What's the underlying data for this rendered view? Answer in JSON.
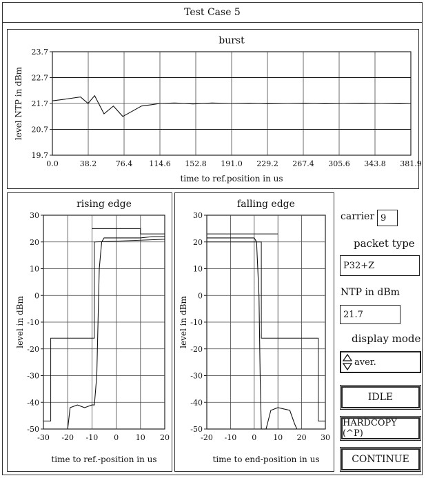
{
  "window": {
    "title": "Test Case 5"
  },
  "controls": {
    "carrier_label": "carrier",
    "carrier_value": "9",
    "packet_type_label": "packet type",
    "packet_type_value": "P32+Z",
    "ntp_label": "NTP in dBm",
    "ntp_value": "21.7",
    "display_mode_label": "display mode",
    "display_mode_value": "aver.",
    "idle_button": "IDLE",
    "hardcopy_button": "HARDCOPY (^P)",
    "continue_button": "CONTINUE",
    "spinner_icon": "up-down-arrows-icon"
  },
  "chart_data": [
    {
      "type": "line",
      "title": "burst",
      "xlabel": "time to ref.position in us",
      "ylabel": "level NTP in dBm",
      "x_ticks": [
        "0.0",
        "38.2",
        "76.4",
        "114.6",
        "152.8",
        "191.0",
        "229.2",
        "267.4",
        "305.6",
        "343.8",
        "381.9"
      ],
      "y_ticks": [
        "19.7",
        "20.7",
        "21.7",
        "22.7",
        "23.7"
      ],
      "xlim": [
        0,
        381.9
      ],
      "ylim": [
        19.7,
        23.7
      ],
      "grid": true,
      "series": [
        {
          "values_note": "",
          "x": [
            0,
            10,
            20,
            30,
            38,
            45,
            55,
            65,
            75,
            85,
            95,
            105,
            114.6,
            130,
            150,
            170,
            190,
            210,
            230,
            250,
            270,
            290,
            310,
            330,
            350,
            370,
            381.9
          ],
          "y": [
            21.8,
            21.85,
            21.9,
            21.95,
            21.7,
            22.0,
            21.3,
            21.6,
            21.2,
            21.4,
            21.6,
            21.65,
            21.7,
            21.72,
            21.68,
            21.72,
            21.7,
            21.71,
            21.69,
            21.7,
            21.71,
            21.69,
            21.7,
            21.71,
            21.7,
            21.69,
            21.7
          ]
        }
      ],
      "limit_lines": [
        {
          "name": "upper",
          "x": [
            0,
            381.9
          ],
          "y": [
            22.7,
            22.7
          ]
        },
        {
          "name": "lower",
          "x": [
            0,
            381.9
          ],
          "y": [
            20.7,
            20.7
          ]
        }
      ]
    },
    {
      "type": "line",
      "title": "rising edge",
      "xlabel": "time to ref.-position in us",
      "ylabel": "level in dBm",
      "x_ticks": [
        "-30",
        "-20",
        "-10",
        "0",
        "10",
        "20"
      ],
      "y_ticks": [
        "30",
        "20",
        "10",
        "0",
        "-10",
        "-20",
        "-30",
        "-40",
        "-50"
      ],
      "xlim": [
        -30,
        20
      ],
      "ylim": [
        -50,
        30
      ],
      "grid": true,
      "series": [
        {
          "x": [
            -20,
            -19,
            -16,
            -13,
            -10,
            -9,
            -8,
            -7.5,
            -7,
            -6,
            -5,
            0,
            5,
            10,
            15,
            20
          ],
          "y": [
            -50,
            -42,
            -41,
            -42,
            -41,
            -41,
            -30,
            -10,
            10,
            20,
            21.5,
            21.5,
            21.5,
            21.5,
            22,
            22
          ]
        }
      ],
      "mask_upper": {
        "x": [
          -10,
          -10,
          10,
          10,
          20
        ],
        "y": [
          25,
          25,
          25,
          23,
          23
        ]
      },
      "mask_lower": {
        "x": [
          -30,
          -27,
          -27,
          -9,
          -9,
          20
        ],
        "y": [
          -47,
          -47,
          -16,
          -16,
          20,
          21
        ]
      }
    },
    {
      "type": "line",
      "title": "falling edge",
      "xlabel": "time to end-position in us",
      "ylabel": "level in dBm",
      "x_ticks": [
        "-20",
        "-10",
        "0",
        "10",
        "20",
        "30"
      ],
      "y_ticks": [
        "30",
        "20",
        "10",
        "0",
        "-10",
        "-20",
        "-30",
        "-40",
        "-50"
      ],
      "xlim": [
        -20,
        30
      ],
      "ylim": [
        -50,
        30
      ],
      "grid": true,
      "series": [
        {
          "x": [
            -20,
            -15,
            -10,
            -5,
            0,
            1,
            2,
            2.5,
            3,
            5,
            7,
            10,
            15,
            17,
            18
          ],
          "y": [
            21.5,
            21.5,
            21.5,
            21.5,
            21.5,
            20,
            0,
            -30,
            -50,
            -50,
            -43,
            -42,
            -43,
            -48,
            -50
          ]
        }
      ],
      "mask_upper": {
        "x": [
          -20,
          10
        ],
        "y": [
          23,
          23
        ]
      },
      "mask_lower": {
        "x": [
          -20,
          3,
          3,
          27,
          27,
          30
        ],
        "y": [
          20,
          20,
          -16,
          -16,
          -47,
          -47
        ]
      }
    }
  ]
}
